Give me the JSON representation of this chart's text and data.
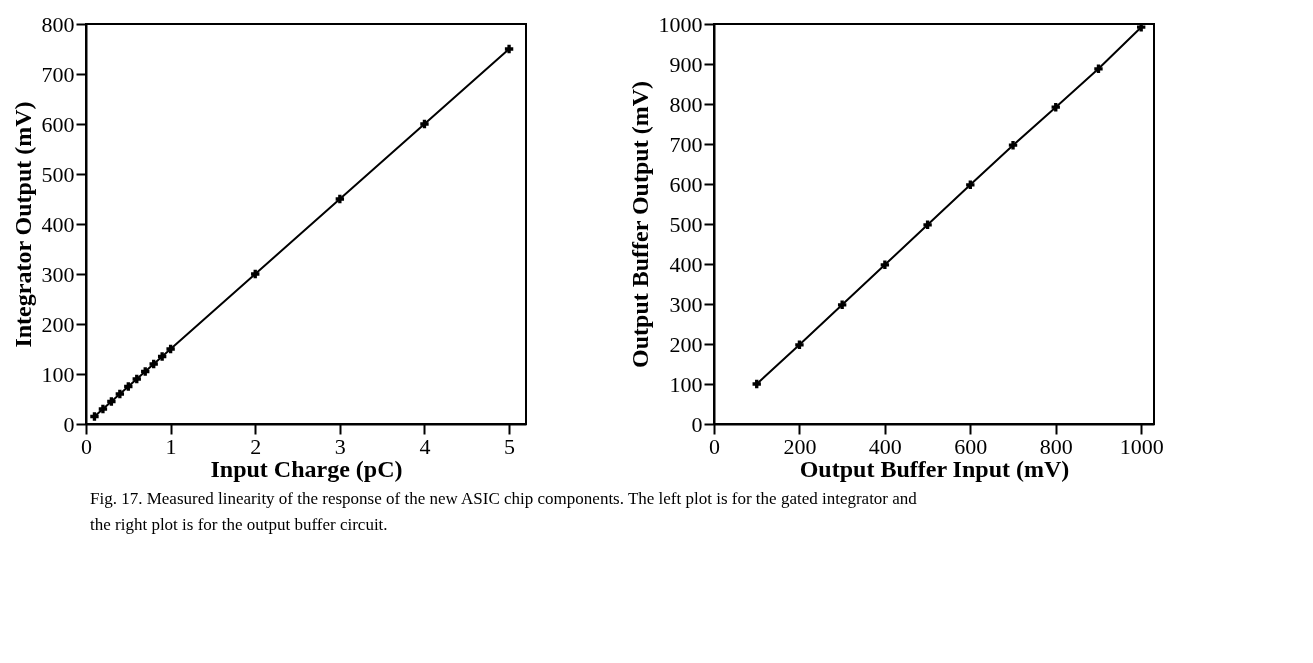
{
  "chart_data": [
    {
      "type": "line",
      "xlabel": "Input Charge (pC)",
      "ylabel": "Integrator Output (mV)",
      "marker": "cross",
      "line_style": "solid",
      "grid": false,
      "x": [
        0.1,
        0.2,
        0.3,
        0.4,
        0.5,
        0.6,
        0.7,
        0.8,
        0.9,
        1.0,
        2.0,
        3.0,
        4.0,
        5.0
      ],
      "series": [
        {
          "color": "#000000",
          "values": [
            15,
            30,
            45,
            60,
            75,
            90,
            105,
            120,
            135,
            150,
            300,
            450,
            600,
            750
          ]
        }
      ],
      "xlim": [
        0,
        5.2
      ],
      "xticks": [
        0,
        1,
        2,
        3,
        4,
        5
      ],
      "ylim": [
        0,
        800
      ],
      "yticks": [
        0,
        100,
        200,
        300,
        400,
        500,
        600,
        700,
        800
      ],
      "annotations": [
        "Fig. 17.  Measured linearity of the response of the new ASIC chip components.  The left plot is for the gated integrator and the right plot is for the output buffer circuit."
      ]
    },
    {
      "type": "line",
      "xlabel": "Output Buffer Input (mV)",
      "ylabel": "Output Buffer Output (mV)",
      "marker": "cross",
      "line_style": "solid",
      "grid": false,
      "x": [
        100,
        200,
        300,
        400,
        500,
        600,
        700,
        800,
        900,
        1000
      ],
      "series": [
        {
          "color": "#000000",
          "values": [
            100,
            198,
            298,
            398,
            498,
            598,
            697,
            792,
            888,
            992
          ]
        }
      ],
      "xlim": [
        0,
        1030
      ],
      "xticks": [
        0,
        200,
        400,
        600,
        800,
        1000
      ],
      "ylim": [
        0,
        1000
      ],
      "yticks": [
        0,
        100,
        200,
        300,
        400,
        500,
        600,
        700,
        800,
        900,
        1000
      ]
    }
  ]
}
